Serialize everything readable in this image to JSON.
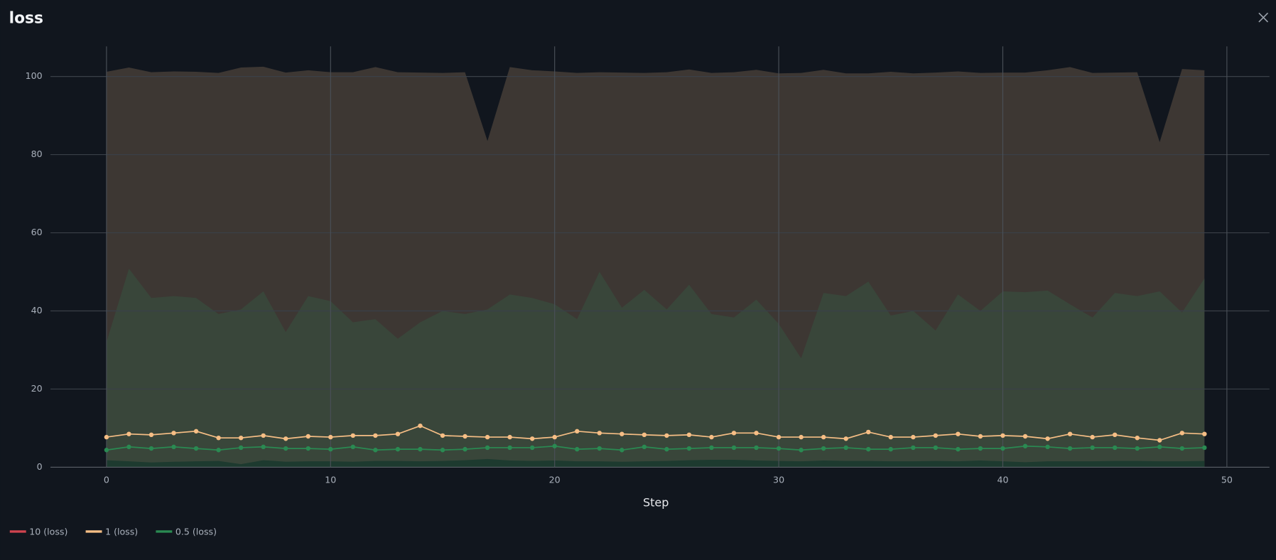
{
  "chart_data": {
    "type": "line",
    "title": "loss",
    "xlabel": "Step",
    "x": [
      0,
      1,
      2,
      3,
      4,
      5,
      6,
      7,
      8,
      9,
      10,
      11,
      12,
      13,
      14,
      15,
      16,
      17,
      18,
      19,
      20,
      21,
      22,
      23,
      24,
      25,
      26,
      27,
      28,
      29,
      30,
      31,
      32,
      33,
      34,
      35,
      36,
      37,
      38,
      39,
      40,
      41,
      42,
      43,
      44,
      45,
      46,
      47,
      48,
      49
    ],
    "xlim": [
      -2.5,
      51.9
    ],
    "ylim": [
      0,
      107.7
    ],
    "xticks": [
      0,
      10,
      20,
      30,
      40,
      50
    ],
    "yticks": [
      0,
      20,
      40,
      60,
      80,
      100
    ],
    "grid": true,
    "legend": "bottom-left",
    "series": [
      {
        "name": "10 (loss)",
        "color": "#d0434f",
        "band_color": "#3d3733",
        "upper": [
          101.2,
          102.3,
          101.1,
          101.3,
          101.2,
          100.9,
          102.3,
          102.5,
          101,
          101.6,
          101.1,
          101.1,
          102.4,
          101.1,
          101,
          100.9,
          101.1,
          83.5,
          102.4,
          101.6,
          101.3,
          100.9,
          101.1,
          101,
          100.9,
          101.1,
          101.8,
          100.9,
          101.1,
          101.7,
          100.8,
          100.9,
          101.7,
          100.8,
          100.8,
          101.2,
          100.8,
          101,
          101.3,
          100.9,
          101,
          101,
          101.6,
          102.4,
          100.9,
          101,
          101.1,
          83.2,
          101.9,
          101.6
        ],
        "lower": [
          0,
          0,
          0,
          0,
          0,
          0,
          0,
          0,
          0,
          0,
          0,
          0,
          0,
          0,
          0,
          0,
          0,
          0,
          0,
          0,
          0,
          0,
          0,
          0,
          0,
          0,
          0,
          0,
          0,
          0,
          0,
          0,
          0,
          0,
          0,
          0,
          0,
          0,
          0,
          0,
          0,
          0,
          0,
          0,
          0,
          0,
          0,
          0,
          0,
          0
        ]
      },
      {
        "name": "1 (loss)",
        "color": "#f6be85",
        "band_color": "#39463a",
        "upper": [
          32,
          50.8,
          43.3,
          43.8,
          43.3,
          39.2,
          40.4,
          45,
          34.6,
          43.8,
          42.5,
          37.1,
          37.9,
          32.9,
          37.1,
          40,
          39.2,
          40.4,
          44.2,
          43.3,
          41.7,
          37.9,
          50,
          40.8,
          45.4,
          40.4,
          46.7,
          39.2,
          38.3,
          42.9,
          36.7,
          27.9,
          44.6,
          43.8,
          47.5,
          38.8,
          40,
          35,
          44.2,
          40,
          45,
          44.8,
          45.2,
          41.7,
          38.3,
          44.6,
          43.8,
          45,
          39.6,
          48.3
        ],
        "lower": [
          0,
          0,
          0,
          0,
          0,
          0,
          0,
          0,
          0,
          0,
          0,
          0,
          0,
          0,
          0,
          0,
          0,
          0,
          0,
          0,
          0,
          0,
          0,
          0,
          0,
          0,
          0,
          0,
          0,
          0,
          0,
          0,
          0,
          0,
          0,
          0,
          0,
          0,
          0,
          0,
          0,
          0,
          0,
          0,
          0,
          0,
          0,
          0,
          0,
          0
        ],
        "values": [
          7.7,
          8.5,
          8.3,
          8.75,
          9.2,
          7.5,
          7.5,
          8.1,
          7.3,
          7.9,
          7.7,
          8.1,
          8.1,
          8.5,
          10.6,
          8.1,
          7.9,
          7.7,
          7.7,
          7.3,
          7.7,
          9.2,
          8.75,
          8.5,
          8.3,
          8.1,
          8.3,
          7.7,
          8.75,
          8.75,
          7.7,
          7.7,
          7.7,
          7.3,
          9,
          7.7,
          7.7,
          8.1,
          8.5,
          7.9,
          8.1,
          7.9,
          7.3,
          8.5,
          7.7,
          8.3,
          7.5,
          6.9,
          8.75,
          8.5
        ]
      },
      {
        "name": "0.5 (loss)",
        "color": "#2a8a52",
        "band_color": "#1d3a2f",
        "upper": [
          1.8,
          1.5,
          1.2,
          1.4,
          1.5,
          1.6,
          0.8,
          1.8,
          1.4,
          1.5,
          1.5,
          1.4,
          1.6,
          1.6,
          1.5,
          1.6,
          1.8,
          2.1,
          1.7,
          1.6,
          1.7,
          1.5,
          1.5,
          1.4,
          1.5,
          1.6,
          1.8,
          1.9,
          1.9,
          1.7,
          1.6,
          1.5,
          1.7,
          1.6,
          1.6,
          1.5,
          1.5,
          1.6,
          1.5,
          1.7,
          1.5,
          1.3,
          1.5,
          1.5,
          1.5,
          1.6,
          1.6,
          1.5,
          1.5,
          1.6
        ],
        "lower": [
          0,
          0,
          0,
          0,
          0,
          0,
          0,
          0,
          0,
          0,
          0,
          0,
          0,
          0,
          0,
          0,
          0,
          0,
          0,
          0,
          0,
          0,
          0,
          0,
          0,
          0,
          0,
          0,
          0,
          0,
          0,
          0,
          0,
          0,
          0,
          0,
          0,
          0,
          0,
          0,
          0,
          0,
          0,
          0,
          0,
          0,
          0,
          0,
          0,
          0
        ],
        "values": [
          4.4,
          5.2,
          4.8,
          5.2,
          4.8,
          4.4,
          5,
          5.2,
          4.8,
          4.8,
          4.6,
          5.2,
          4.4,
          4.6,
          4.6,
          4.4,
          4.6,
          5,
          5,
          5,
          5.4,
          4.6,
          4.8,
          4.4,
          5.2,
          4.6,
          4.8,
          5,
          5,
          5,
          4.8,
          4.4,
          4.8,
          5,
          4.6,
          4.6,
          5,
          5,
          4.6,
          4.8,
          4.8,
          5.4,
          5.2,
          4.8,
          5,
          5,
          4.8,
          5.2,
          4.8,
          5
        ]
      }
    ]
  }
}
